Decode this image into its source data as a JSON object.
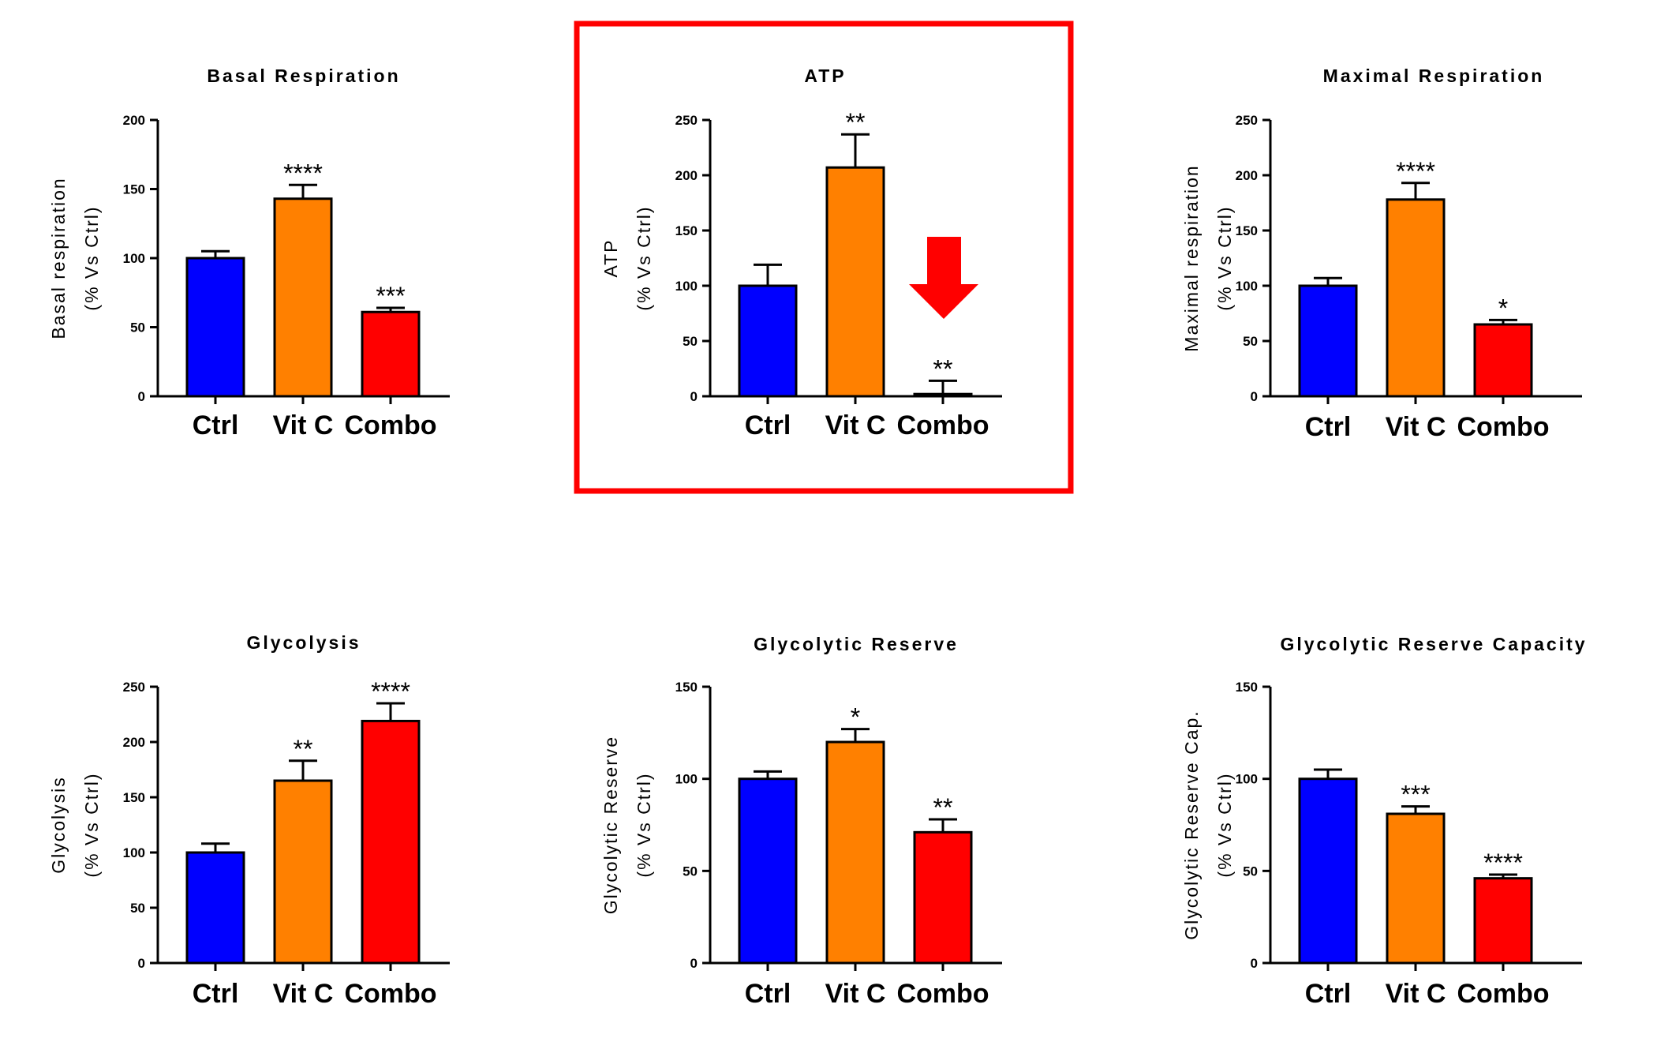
{
  "colors": {
    "Ctrl": "#0000ff",
    "Vit C": "#ff8000",
    "Combo": "#ff0000",
    "highlight": "#ff0000"
  },
  "chart_data": [
    {
      "type": "bar",
      "title": "Basal Respiration",
      "ylabel": [
        "Basal respiration",
        "(% Vs Ctrl)"
      ],
      "categories": [
        "Ctrl",
        "Vit C",
        "Combo"
      ],
      "values": [
        100,
        143,
        61
      ],
      "errors": [
        5,
        10,
        3
      ],
      "significance": [
        "",
        "****",
        "***"
      ],
      "ylim": [
        0,
        200
      ],
      "yticks": [
        0,
        50,
        100,
        150,
        200
      ]
    },
    {
      "type": "bar",
      "title": "ATP",
      "ylabel": [
        "ATP",
        "(% Vs Ctrl)"
      ],
      "categories": [
        "Ctrl",
        "Vit C",
        "Combo"
      ],
      "values": [
        100,
        207,
        2
      ],
      "errors": [
        19,
        30,
        12
      ],
      "significance": [
        "",
        "**",
        "**"
      ],
      "ylim": [
        0,
        250
      ],
      "yticks": [
        0,
        50,
        100,
        150,
        200,
        250
      ],
      "highlighted": true,
      "annotation": "red downward arrow above Combo"
    },
    {
      "type": "bar",
      "title": "Maximal Respiration",
      "ylabel": [
        "Maximal respiration",
        "(% Vs Ctrl)"
      ],
      "categories": [
        "Ctrl",
        "Vit C",
        "Combo"
      ],
      "values": [
        100,
        178,
        65
      ],
      "errors": [
        7,
        15,
        4
      ],
      "significance": [
        "",
        "****",
        "*"
      ],
      "ylim": [
        0,
        250
      ],
      "yticks": [
        0,
        50,
        100,
        150,
        200,
        250
      ]
    },
    {
      "type": "bar",
      "title": "Glycolysis",
      "ylabel": [
        "Glycolysis",
        "(% Vs Ctrl)"
      ],
      "categories": [
        "Ctrl",
        "Vit C",
        "Combo"
      ],
      "values": [
        100,
        165,
        219
      ],
      "errors": [
        8,
        18,
        16
      ],
      "significance": [
        "",
        "**",
        "****"
      ],
      "ylim": [
        0,
        250
      ],
      "yticks": [
        0,
        50,
        100,
        150,
        200,
        250
      ]
    },
    {
      "type": "bar",
      "title": "Glycolytic Reserve",
      "ylabel": [
        "Glycolytic Reserve",
        "(% Vs Ctrl)"
      ],
      "categories": [
        "Ctrl",
        "Vit C",
        "Combo"
      ],
      "values": [
        100,
        120,
        71
      ],
      "errors": [
        4,
        7,
        7
      ],
      "significance": [
        "",
        "*",
        "**"
      ],
      "ylim": [
        0,
        150
      ],
      "yticks": [
        0,
        50,
        100,
        150
      ]
    },
    {
      "type": "bar",
      "title": "Glycolytic Reserve Capacity",
      "ylabel": [
        "Glycolytic Reserve Cap.",
        "(% Vs Ctrl)"
      ],
      "categories": [
        "Ctrl",
        "Vit C",
        "Combo"
      ],
      "values": [
        100,
        81,
        46
      ],
      "errors": [
        5,
        4,
        2
      ],
      "significance": [
        "",
        "***",
        "****"
      ],
      "ylim": [
        0,
        150
      ],
      "yticks": [
        0,
        50,
        100,
        150
      ]
    }
  ]
}
